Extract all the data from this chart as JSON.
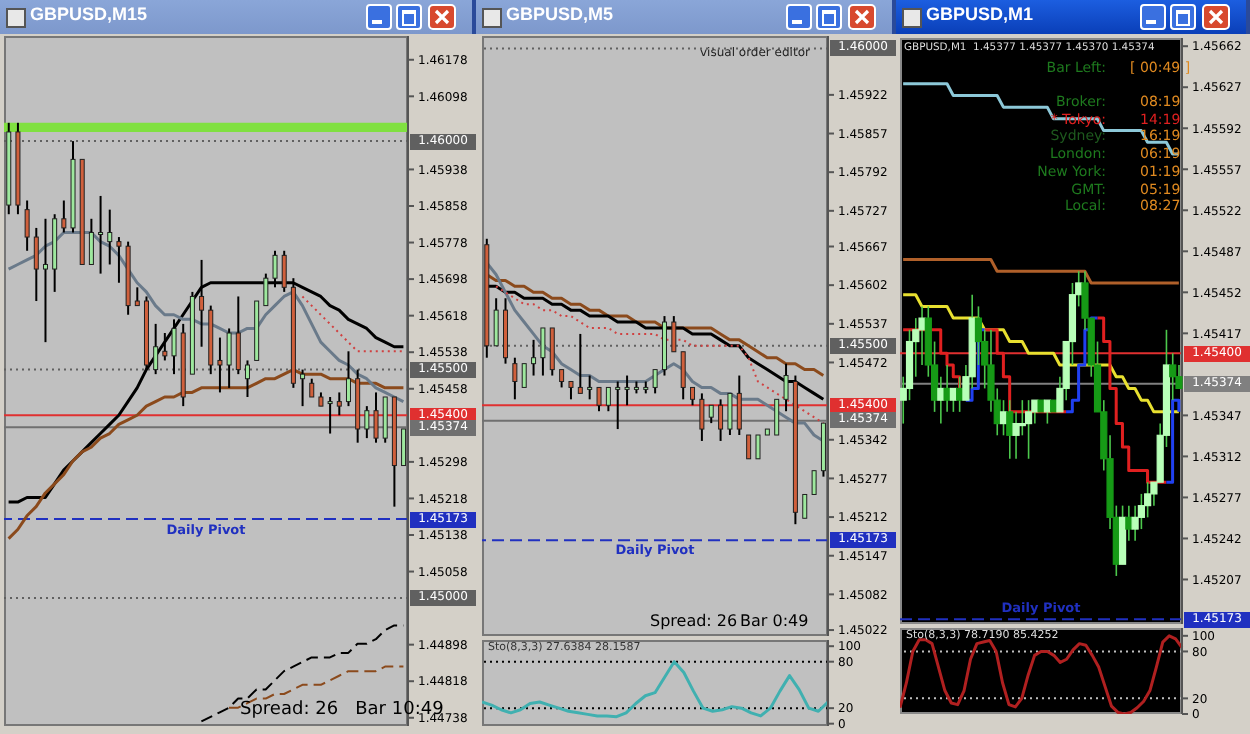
{
  "chart_data": [
    {
      "type": "candlestick",
      "title": "GBPUSD,M15",
      "tick_labels": "y",
      "categories": [
        null,
        null,
        null,
        null,
        null,
        null,
        null,
        null,
        null,
        null,
        null,
        null,
        null,
        null,
        null,
        null,
        null,
        null,
        null,
        null,
        null,
        null,
        null,
        null,
        null,
        null,
        null,
        null,
        null,
        null,
        null,
        null,
        null,
        null,
        null,
        null,
        null,
        null,
        null,
        null,
        null,
        null,
        null,
        null
      ],
      "ohlc": [
        [
          1.4586,
          1.4604,
          1.4584,
          1.4602
        ],
        [
          1.4602,
          1.4604,
          1.4584,
          1.4586
        ],
        [
          1.4585,
          1.4587,
          1.4576,
          1.4579
        ],
        [
          1.4579,
          1.4581,
          1.4565,
          1.4572
        ],
        [
          1.4572,
          1.4583,
          1.4556,
          1.4573
        ],
        [
          1.4572,
          1.4584,
          1.4567,
          1.4583
        ],
        [
          1.4583,
          1.4587,
          1.458,
          1.4581
        ],
        [
          1.4581,
          1.46,
          1.458,
          1.4596
        ],
        [
          1.4596,
          1.4596,
          1.4573,
          1.4573
        ],
        [
          1.4573,
          1.4583,
          1.4573,
          1.458
        ],
        [
          1.458,
          1.4588,
          1.4571,
          1.458
        ],
        [
          1.4578,
          1.4585,
          1.4573,
          1.458
        ],
        [
          1.4578,
          1.4579,
          1.4569,
          1.4577
        ],
        [
          1.4577,
          1.4578,
          1.4562,
          1.4564
        ],
        [
          1.4565,
          1.4568,
          1.4564,
          1.4564
        ],
        [
          1.4565,
          1.4566,
          1.455,
          1.4551
        ],
        [
          1.455,
          1.456,
          1.4549,
          1.4555
        ],
        [
          1.4554,
          1.4558,
          1.4552,
          1.4553
        ],
        [
          1.4553,
          1.4561,
          1.4549,
          1.4559
        ],
        [
          1.4558,
          1.456,
          1.4542,
          1.4544
        ],
        [
          1.4549,
          1.4567,
          1.4549,
          1.4566
        ],
        [
          1.4566,
          1.4574,
          1.4555,
          1.4563
        ],
        [
          1.4563,
          1.4564,
          1.4549,
          1.4551
        ],
        [
          1.4552,
          1.4557,
          1.4545,
          1.4551
        ],
        [
          1.4551,
          1.4559,
          1.4546,
          1.4558
        ],
        [
          1.4558,
          1.4566,
          1.4549,
          1.455
        ],
        [
          1.4548,
          1.4552,
          1.4544,
          1.4551
        ],
        [
          1.4552,
          1.4565,
          1.4552,
          1.4565
        ],
        [
          1.4564,
          1.4571,
          1.4564,
          1.457
        ],
        [
          1.457,
          1.4576,
          1.4568,
          1.4575
        ],
        [
          1.4575,
          1.4576,
          1.4567,
          1.4568
        ],
        [
          1.4568,
          1.457,
          1.4546,
          1.4547
        ],
        [
          1.4548,
          1.455,
          1.4542,
          1.4549
        ],
        [
          1.4547,
          1.4548,
          1.4544,
          1.4544
        ],
        [
          1.4544,
          1.4545,
          1.4542,
          1.4542
        ],
        [
          1.4543,
          1.4544,
          1.4536,
          1.4543
        ],
        [
          1.4543,
          1.4545,
          1.454,
          1.4542
        ],
        [
          1.4543,
          1.4554,
          1.4542,
          1.4548
        ],
        [
          1.4548,
          1.455,
          1.4534,
          1.4537
        ],
        [
          1.4537,
          1.4542,
          1.4535,
          1.4541
        ],
        [
          1.4541,
          1.4545,
          1.4534,
          1.4535
        ],
        [
          1.4535,
          1.4544,
          1.4534,
          1.4544
        ],
        [
          1.4544,
          1.4544,
          1.452,
          1.4529
        ],
        [
          1.4529,
          1.4537,
          1.4529,
          1.4537
        ]
      ],
      "series": [
        {
          "type": "line",
          "color": "#000000",
          "values": [
            1.4521,
            1.4521,
            1.4522,
            1.4522,
            1.4522,
            1.4525,
            1.4528,
            1.453,
            1.4532,
            1.4534,
            1.4536,
            1.4538,
            1.454,
            1.4543,
            1.4546,
            1.455,
            1.4553,
            1.4556,
            1.4559,
            1.4562,
            1.4565,
            1.4568,
            1.4569,
            1.4569,
            1.4569,
            1.4569,
            1.4569,
            1.4569,
            1.4569,
            1.4569,
            1.4569,
            1.4569,
            1.4568,
            1.4567,
            1.4566,
            1.4564,
            1.4563,
            1.4561,
            1.456,
            1.4559,
            1.4557,
            1.4556,
            1.4555,
            1.4555
          ]
        },
        {
          "type": "line",
          "color": "#8b4a1c",
          "values": [
            1.4513,
            1.4515,
            1.4518,
            1.452,
            1.4523,
            1.4525,
            1.4527,
            1.453,
            1.4532,
            1.4533,
            1.4535,
            1.4536,
            1.4538,
            1.4539,
            1.454,
            1.4542,
            1.4543,
            1.4544,
            1.4544,
            1.4545,
            1.4545,
            1.4546,
            1.4546,
            1.4546,
            1.4546,
            1.4546,
            1.4546,
            1.4547,
            1.4548,
            1.4548,
            1.4549,
            1.455,
            1.4549,
            1.4549,
            1.4549,
            1.4548,
            1.4548,
            1.4548,
            1.4547,
            1.4547,
            1.4547,
            1.4546,
            1.4546,
            1.4546
          ]
        },
        {
          "type": "line",
          "color": "#6a7a8a",
          "values": [
            1.4572,
            1.4573,
            1.4574,
            1.4575,
            1.4577,
            1.4578,
            1.458,
            1.458,
            1.458,
            1.458,
            1.4578,
            1.4577,
            1.4575,
            1.4572,
            1.4569,
            1.4567,
            1.4564,
            1.4562,
            1.4562,
            1.4561,
            1.4561,
            1.456,
            1.456,
            1.4559,
            1.4558,
            1.4558,
            1.4559,
            1.4559,
            1.4562,
            1.4564,
            1.4566,
            1.4567,
            1.4564,
            1.456,
            1.4556,
            1.4554,
            1.4552,
            1.4551,
            1.4549,
            1.4548,
            1.4546,
            1.4545,
            1.4544,
            1.4543
          ]
        },
        {
          "type": "line",
          "color": "#d04040",
          "line_style": "dotted",
          "values": [
            null,
            null,
            null,
            null,
            null,
            null,
            null,
            null,
            null,
            null,
            null,
            null,
            null,
            null,
            null,
            null,
            null,
            null,
            null,
            null,
            null,
            null,
            null,
            null,
            null,
            null,
            null,
            null,
            null,
            null,
            null,
            null,
            1.4566,
            1.4564,
            1.4562,
            1.456,
            1.4558,
            1.4556,
            1.4554,
            1.4554,
            1.4554,
            1.4554,
            1.4554,
            1.4554
          ]
        },
        {
          "type": "line",
          "color": "#000000",
          "line_style": "dashed",
          "values": [
            null,
            null,
            null,
            null,
            null,
            null,
            null,
            null,
            null,
            null,
            null,
            null,
            null,
            null,
            null,
            null,
            null,
            null,
            null,
            null,
            null,
            1.4473,
            1.4474,
            1.4475,
            1.4476,
            1.4478,
            1.4478,
            1.448,
            1.448,
            1.4482,
            1.4484,
            1.4485,
            1.4486,
            1.4487,
            1.4487,
            1.4487,
            1.4488,
            1.4488,
            1.449,
            1.449,
            1.4491,
            1.4493,
            1.4494,
            1.4494
          ]
        },
        {
          "type": "line",
          "color": "#8b4a1c",
          "line_style": "dashed",
          "values": [
            null,
            null,
            null,
            null,
            null,
            null,
            null,
            null,
            null,
            null,
            null,
            null,
            null,
            null,
            null,
            null,
            null,
            null,
            null,
            null,
            null,
            null,
            null,
            null,
            1.4476,
            1.4476,
            1.4477,
            1.4478,
            1.4478,
            1.4479,
            1.4479,
            1.448,
            1.4481,
            1.4481,
            1.4481,
            1.4482,
            1.4483,
            1.4484,
            1.4484,
            1.4484,
            1.4484,
            1.4485,
            1.4485,
            1.4485
          ]
        }
      ],
      "ylim": [
        1.4472,
        1.4623
      ],
      "yticks": [
        1.46178,
        1.46098,
        1.45938,
        1.45858,
        1.45778,
        1.45698,
        1.45618,
        1.45538,
        1.45458,
        1.45298,
        1.45218,
        1.45138,
        1.45058,
        1.44898,
        1.44818,
        1.44738
      ],
      "bands": [
        {
          "axis": "y",
          "from": 1.4602,
          "to": 1.4604,
          "color": "#80e040"
        }
      ],
      "ref_lines": [
        {
          "axis": "y",
          "value": 1.46,
          "label": "1.46000",
          "color": "#606060",
          "line_style": "dotted"
        },
        {
          "axis": "y",
          "value": 1.455,
          "label": "1.45500",
          "color": "#606060",
          "line_style": "dotted"
        },
        {
          "axis": "y",
          "value": 1.454,
          "label": "1.45400",
          "color": "#e03030",
          "line_style": "solid"
        },
        {
          "axis": "y",
          "value": 1.45374,
          "label": "1.45374",
          "color": "#707070",
          "line_style": "solid"
        },
        {
          "axis": "y",
          "value": 1.45173,
          "label": "1.45173",
          "color": "#2030c0",
          "line_style": "dashed"
        },
        {
          "axis": "y",
          "value": 1.45,
          "label": "1.45000",
          "color": "#606060",
          "line_style": "dotted"
        }
      ],
      "annotations": [
        "Spread: 26   Bar 10:49",
        {
          "text": "Daily Pivot",
          "y": 1.45173
        }
      ]
    },
    {
      "type": "candlestick",
      "title": "GBPUSD,M5",
      "tick_labels": "y",
      "categories": [
        null,
        null,
        null,
        null,
        null,
        null,
        null,
        null,
        null,
        null,
        null,
        null,
        null,
        null,
        null,
        null,
        null,
        null,
        null,
        null,
        null,
        null,
        null,
        null,
        null,
        null,
        null,
        null,
        null,
        null,
        null,
        null,
        null,
        null,
        null,
        null,
        null
      ],
      "ohlc": [
        [
          1.4567,
          1.4568,
          1.4548,
          1.455
        ],
        [
          1.455,
          1.4558,
          1.455,
          1.4556
        ],
        [
          1.4556,
          1.4558,
          1.4547,
          1.4548
        ],
        [
          1.4547,
          1.4548,
          1.4541,
          1.4544
        ],
        [
          1.4543,
          1.4547,
          1.4543,
          1.4547
        ],
        [
          1.4547,
          1.4551,
          1.4545,
          1.4548
        ],
        [
          1.4548,
          1.4553,
          1.4545,
          1.4553
        ],
        [
          1.4553,
          1.4553,
          1.4545,
          1.4546
        ],
        [
          1.4546,
          1.4546,
          1.4543,
          1.4544
        ],
        [
          1.4544,
          1.4544,
          1.4541,
          1.4543
        ],
        [
          1.4543,
          1.4552,
          1.4542,
          1.4542
        ],
        [
          1.4543,
          1.4545,
          1.4541,
          1.4543
        ],
        [
          1.4543,
          1.4543,
          1.4539,
          1.454
        ],
        [
          1.454,
          1.4543,
          1.4539,
          1.4543
        ],
        [
          1.4543,
          1.4544,
          1.4536,
          1.4543
        ],
        [
          1.4543,
          1.4545,
          1.454,
          1.4543
        ],
        [
          1.4543,
          1.4544,
          1.4542,
          1.4543
        ],
        [
          1.4543,
          1.4544,
          1.4542,
          1.4543
        ],
        [
          1.4543,
          1.4546,
          1.4542,
          1.4546
        ],
        [
          1.4546,
          1.4555,
          1.4545,
          1.4554
        ],
        [
          1.4554,
          1.4555,
          1.4549,
          1.4549
        ],
        [
          1.4549,
          1.4549,
          1.4541,
          1.4543
        ],
        [
          1.4543,
          1.4543,
          1.454,
          1.4541
        ],
        [
          1.4541,
          1.4542,
          1.4534,
          1.4536
        ],
        [
          1.4538,
          1.454,
          1.4537,
          1.454
        ],
        [
          1.454,
          1.4541,
          1.4534,
          1.4536
        ],
        [
          1.4536,
          1.4542,
          1.4535,
          1.4542
        ],
        [
          1.4542,
          1.4545,
          1.4535,
          1.4536
        ],
        [
          1.4535,
          1.4535,
          1.4531,
          1.4531
        ],
        [
          1.4531,
          1.4535,
          1.4531,
          1.4535
        ],
        [
          1.4535,
          1.4536,
          1.4535,
          1.4536
        ],
        [
          1.4535,
          1.4541,
          1.4535,
          1.4541
        ],
        [
          1.4541,
          1.4547,
          1.4539,
          1.4545
        ],
        [
          1.4544,
          1.4545,
          1.452,
          1.4522
        ],
        [
          1.4521,
          1.4525,
          1.4521,
          1.4525
        ],
        [
          1.4525,
          1.4529,
          1.4525,
          1.4529
        ],
        [
          1.4529,
          1.4537,
          1.4528,
          1.4537
        ]
      ],
      "series": [
        {
          "type": "line",
          "color": "#8b4a1c",
          "values": [
            1.4562,
            1.4561,
            1.4561,
            1.456,
            1.456,
            1.4559,
            1.4559,
            1.4558,
            1.4558,
            1.4557,
            1.4557,
            1.4556,
            1.4556,
            1.4555,
            1.4555,
            1.4555,
            1.4554,
            1.4554,
            1.4554,
            1.4553,
            1.4553,
            1.4553,
            1.4553,
            1.4553,
            1.4553,
            1.4552,
            1.4551,
            1.4551,
            1.455,
            1.4549,
            1.4548,
            1.4548,
            1.4547,
            1.4547,
            1.4546,
            1.4546,
            1.4545
          ]
        },
        {
          "type": "line",
          "color": "#000000",
          "values": [
            1.456,
            1.456,
            1.4559,
            1.4559,
            1.4558,
            1.4558,
            1.4558,
            1.4557,
            1.4557,
            1.4556,
            1.4556,
            1.4555,
            1.4555,
            1.4555,
            1.4554,
            1.4554,
            1.4554,
            1.4553,
            1.4553,
            1.4553,
            1.4553,
            1.4553,
            1.4552,
            1.4552,
            1.4552,
            1.4551,
            1.455,
            1.455,
            1.4548,
            1.4547,
            1.4546,
            1.4545,
            1.4544,
            1.4544,
            1.4543,
            1.4542,
            1.4541
          ]
        },
        {
          "type": "line",
          "color": "#6a7a8a",
          "values": [
            1.4564,
            1.4562,
            1.4559,
            1.4556,
            1.4554,
            1.4552,
            1.455,
            1.4549,
            1.4547,
            1.4546,
            1.4545,
            1.4545,
            1.4544,
            1.4544,
            1.4544,
            1.4544,
            1.4544,
            1.4544,
            1.4545,
            1.4546,
            1.4547,
            1.4546,
            1.4544,
            1.4543,
            1.4543,
            1.4542,
            1.4542,
            1.4541,
            1.4541,
            1.4541,
            1.454,
            1.4539,
            1.4538,
            1.4537,
            1.4537,
            1.4535,
            1.4534
          ]
        },
        {
          "type": "line",
          "color": "#d04040",
          "line_style": "dotted",
          "values": [
            null,
            1.456,
            1.4559,
            1.4558,
            1.4557,
            1.4557,
            1.4556,
            1.4556,
            1.4555,
            1.4555,
            1.4554,
            1.4553,
            1.4553,
            1.4553,
            1.4552,
            1.4552,
            1.4552,
            1.4552,
            1.4552,
            1.4551,
            1.4551,
            1.4551,
            1.455,
            1.455,
            1.455,
            1.455,
            1.455,
            1.455,
            1.4548,
            1.4544,
            1.4543,
            1.4542,
            1.4541,
            1.454,
            1.4539,
            1.4538,
            1.4537
          ]
        }
      ],
      "ylim": [
        1.45012,
        1.46021
      ],
      "yticks": [
        1.45922,
        1.45857,
        1.45792,
        1.45727,
        1.45667,
        1.45602,
        1.45537,
        1.45472,
        1.45342,
        1.45277,
        1.45212,
        1.45147,
        1.45082,
        1.45022
      ],
      "ref_lines": [
        {
          "axis": "y",
          "value": 1.46,
          "label": "1.46000",
          "color": "#606060",
          "line_style": "dotted"
        },
        {
          "axis": "y",
          "value": 1.455,
          "label": "1.45500",
          "color": "#606060",
          "line_style": "dotted"
        },
        {
          "axis": "y",
          "value": 1.454,
          "label": "1.45400",
          "color": "#e03030",
          "line_style": "solid"
        },
        {
          "axis": "y",
          "value": 1.45374,
          "label": "1.45374",
          "color": "#707070",
          "line_style": "solid"
        },
        {
          "axis": "y",
          "value": 1.45173,
          "label": "1.45173",
          "color": "#2030c0",
          "line_style": "dashed"
        }
      ],
      "annotations": [
        "visual order editor",
        "Spread: 26",
        "Bar 0:49",
        {
          "text": "Daily Pivot",
          "y": 1.45173
        }
      ]
    },
    {
      "type": "line",
      "title": "Sto(8,3,3) 27.6384 28.1587",
      "tick_labels": "y",
      "categories": [
        null,
        null,
        null,
        null,
        null,
        null,
        null,
        null,
        null,
        null,
        null,
        null,
        null,
        null,
        null,
        null,
        null,
        null,
        null,
        null,
        null,
        null,
        null,
        null,
        null,
        null,
        null,
        null,
        null,
        null,
        null,
        null,
        null,
        null,
        null,
        null,
        null
      ],
      "series": [
        {
          "color": "#40b0b0",
          "values": [
            28,
            24,
            18,
            14,
            18,
            26,
            28,
            24,
            20,
            16,
            14,
            12,
            10,
            10,
            9,
            14,
            26,
            36,
            40,
            60,
            80,
            66,
            42,
            20,
            16,
            18,
            22,
            20,
            14,
            10,
            20,
            42,
            62,
            44,
            20,
            16,
            28
          ]
        }
      ],
      "ylim": [
        -3,
        108
      ],
      "yticks": [
        0,
        20,
        80,
        100
      ],
      "ref_lines": [
        {
          "axis": "y",
          "value": 80,
          "color": "#000000",
          "line_style": "dotted"
        },
        {
          "axis": "y",
          "value": 20,
          "color": "#000000",
          "line_style": "dotted"
        }
      ]
    },
    {
      "type": "candlestick",
      "title": "GBPUSD,M1",
      "tick_labels": "y",
      "categories": [
        null,
        null,
        null,
        null,
        null,
        null,
        null,
        null,
        null,
        null,
        null,
        null,
        null,
        null,
        null,
        null,
        null,
        null,
        null,
        null,
        null,
        null,
        null,
        null,
        null,
        null,
        null,
        null,
        null,
        null,
        null,
        null,
        null,
        null,
        null,
        null,
        null,
        null,
        null,
        null,
        null,
        null,
        null,
        null,
        null
      ],
      "ohlc": [
        [
          1.4536,
          1.4538,
          1.4534,
          1.4537
        ],
        [
          1.4537,
          1.4542,
          1.4536,
          1.4541
        ],
        [
          1.4541,
          1.4543,
          1.4538,
          1.4542
        ],
        [
          1.4542,
          1.4544,
          1.4539,
          1.4543
        ],
        [
          1.4543,
          1.4544,
          1.4538,
          1.4539
        ],
        [
          1.4539,
          1.4541,
          1.4535,
          1.4536
        ],
        [
          1.4536,
          1.4538,
          1.4534,
          1.4537
        ],
        [
          1.4537,
          1.4539,
          1.4535,
          1.4536
        ],
        [
          1.4536,
          1.4537,
          1.4535,
          1.4537
        ],
        [
          1.4537,
          1.4538,
          1.4535,
          1.4536
        ],
        [
          1.4536,
          1.4539,
          1.4536,
          1.4538
        ],
        [
          1.4538,
          1.4545,
          1.4537,
          1.4543
        ],
        [
          1.4543,
          1.4544,
          1.4539,
          1.4541
        ],
        [
          1.4541,
          1.4542,
          1.4537,
          1.4539
        ],
        [
          1.4539,
          1.4542,
          1.4535,
          1.4536
        ],
        [
          1.4536,
          1.4537,
          1.4533,
          1.4534
        ],
        [
          1.4534,
          1.4536,
          1.4533,
          1.4535
        ],
        [
          1.4535,
          1.4536,
          1.4531,
          1.4533
        ],
        [
          1.4533,
          1.4535,
          1.4531,
          1.4534
        ],
        [
          1.4534,
          1.4536,
          1.4533,
          1.4534
        ],
        [
          1.4534,
          1.4536,
          1.4531,
          1.4535
        ],
        [
          1.4535,
          1.4536,
          1.4534,
          1.4536
        ],
        [
          1.4536,
          1.4536,
          1.4535,
          1.4535
        ],
        [
          1.4535,
          1.4536,
          1.4534,
          1.4536
        ],
        [
          1.4536,
          1.4536,
          1.4535,
          1.4535
        ],
        [
          1.4535,
          1.4538,
          1.4535,
          1.4537
        ],
        [
          1.4537,
          1.4541,
          1.4536,
          1.4541
        ],
        [
          1.4541,
          1.4546,
          1.4539,
          1.4545
        ],
        [
          1.4545,
          1.4547,
          1.4544,
          1.4546
        ],
        [
          1.4546,
          1.4547,
          1.4542,
          1.4543
        ],
        [
          1.4543,
          1.4543,
          1.4538,
          1.4539
        ],
        [
          1.4539,
          1.4541,
          1.4535,
          1.4535
        ],
        [
          1.4535,
          1.4536,
          1.453,
          1.4531
        ],
        [
          1.4531,
          1.4533,
          1.4525,
          1.4526
        ],
        [
          1.4526,
          1.4527,
          1.4521,
          1.4522
        ],
        [
          1.4522,
          1.4527,
          1.4522,
          1.4526
        ],
        [
          1.4526,
          1.4527,
          1.4524,
          1.4525
        ],
        [
          1.4525,
          1.4527,
          1.4524,
          1.4526
        ],
        [
          1.4526,
          1.4528,
          1.4525,
          1.4527
        ],
        [
          1.4527,
          1.4529,
          1.4526,
          1.4528
        ],
        [
          1.4528,
          1.4529,
          1.4527,
          1.4529
        ],
        [
          1.4529,
          1.4534,
          1.4529,
          1.4533
        ],
        [
          1.4533,
          1.4542,
          1.4532,
          1.4539
        ],
        [
          1.4539,
          1.454,
          1.4536,
          1.4538
        ],
        [
          1.4538,
          1.4539,
          1.4537,
          1.4537
        ]
      ],
      "series": [
        {
          "type": "line",
          "color": "#8cc8d8",
          "values": [
            1.4563,
            1.4563,
            1.4563,
            1.4563,
            1.4563,
            1.4563,
            1.4563,
            1.4563,
            1.4562,
            1.4562,
            1.4562,
            1.4562,
            1.4562,
            1.4562,
            1.4562,
            1.4562,
            1.4561,
            1.4561,
            1.4561,
            1.4561,
            1.4561,
            1.4561,
            1.4561,
            1.4561,
            1.456,
            1.456,
            1.456,
            1.456,
            1.456,
            1.456,
            1.456,
            1.456,
            1.4559,
            1.4559,
            1.4559,
            1.4559,
            1.4559,
            1.4559,
            1.4559,
            1.4558,
            1.4558,
            1.4558,
            1.4558,
            1.4557,
            1.4557
          ]
        },
        {
          "type": "line",
          "color": "#b0602a",
          "values": [
            1.4548,
            1.4548,
            1.4548,
            1.4548,
            1.4548,
            1.4548,
            1.4548,
            1.4548,
            1.4548,
            1.4548,
            1.4548,
            1.4548,
            1.4548,
            1.4548,
            1.4548,
            1.4547,
            1.4547,
            1.4547,
            1.4547,
            1.4547,
            1.4547,
            1.4547,
            1.4547,
            1.4547,
            1.4547,
            1.4547,
            1.4547,
            1.4547,
            1.4547,
            1.4547,
            1.4546,
            1.4546,
            1.4546,
            1.4546,
            1.4546,
            1.4546,
            1.4546,
            1.4546,
            1.4546,
            1.4546,
            1.4546,
            1.4546,
            1.4546,
            1.4546,
            1.4546
          ]
        },
        {
          "type": "line",
          "color": "#e8e030",
          "values": [
            1.4545,
            1.4545,
            1.4545,
            1.4544,
            1.4544,
            1.4544,
            1.4544,
            1.4544,
            1.4543,
            1.4543,
            1.4543,
            1.4543,
            1.4543,
            1.4542,
            1.4542,
            1.4542,
            1.4542,
            1.4541,
            1.4541,
            1.4541,
            1.454,
            1.454,
            1.454,
            1.454,
            1.454,
            1.4539,
            1.4539,
            1.4539,
            1.4539,
            1.4539,
            1.4539,
            1.4539,
            1.4539,
            1.4539,
            1.4538,
            1.4538,
            1.4537,
            1.4537,
            1.4536,
            1.4536,
            1.4535,
            1.4535,
            1.4535,
            1.4535,
            1.4535
          ]
        },
        {
          "type": "step",
          "color": "#e02020",
          "values": [
            1.4542,
            1.4542,
            1.4542,
            1.4542,
            1.4542,
            1.4542,
            1.454,
            1.4539,
            1.4538,
            1.4537,
            null,
            null,
            null,
            1.4542,
            1.4542,
            1.454,
            1.4538,
            1.4535,
            1.4535,
            1.4535,
            1.4535,
            1.4535,
            1.4535,
            1.4535,
            1.4535,
            1.4535,
            1.4535,
            null,
            null,
            null,
            null,
            1.4543,
            1.4541,
            1.4537,
            1.4534,
            1.4532,
            1.453,
            1.453,
            1.453,
            1.4529,
            1.4529,
            1.4529,
            1.4529,
            null,
            null
          ]
        },
        {
          "type": "step",
          "color": "#2040f0",
          "values": [
            null,
            null,
            null,
            null,
            null,
            null,
            null,
            null,
            null,
            null,
            1.4536,
            1.4537,
            1.4542,
            1.4542,
            null,
            null,
            null,
            null,
            null,
            null,
            null,
            null,
            null,
            null,
            null,
            null,
            1.4535,
            1.4536,
            1.4539,
            1.4542,
            1.4543,
            1.4543,
            null,
            null,
            null,
            null,
            null,
            null,
            null,
            null,
            null,
            null,
            1.4529,
            1.4536,
            1.4535
          ]
        }
      ],
      "ylim": [
        1.45169,
        1.45669
      ],
      "yticks": [
        1.45662,
        1.45627,
        1.45592,
        1.45557,
        1.45522,
        1.45487,
        1.45452,
        1.45417,
        1.45347,
        1.45312,
        1.45277,
        1.45242,
        1.45207
      ],
      "ref_lines": [
        {
          "axis": "y",
          "value": 1.454,
          "label": "1.45400",
          "color": "#e03030",
          "line_style": "solid"
        },
        {
          "axis": "y",
          "value": 1.45374,
          "label": "1.45374",
          "color": "#808080",
          "line_style": "solid"
        },
        {
          "axis": "y",
          "value": 1.45173,
          "label": "1.45173",
          "color": "#2030c0",
          "line_style": "dashed"
        }
      ],
      "annotations": [
        "GBPUSD,M1  1.45377 1.45377 1.45370 1.45374",
        "Bar Left:",
        "[ 00:49 ]",
        "Broker:",
        "08:19",
        "* Tokyo:",
        "14:19",
        "Sydney:",
        "16:19",
        "London:",
        "06:19",
        "New York:",
        "01:19",
        "GMT:",
        "05:19",
        "Local:",
        "08:27",
        {
          "text": "Daily Pivot",
          "y": 1.45173
        }
      ]
    },
    {
      "type": "line",
      "title": "Sto(8,3,3) 78.7190 85.4252",
      "tick_labels": "y",
      "categories": [
        null,
        null,
        null,
        null,
        null,
        null,
        null,
        null,
        null,
        null,
        null,
        null,
        null,
        null,
        null,
        null,
        null,
        null,
        null,
        null,
        null,
        null,
        null,
        null,
        null,
        null,
        null,
        null,
        null,
        null,
        null,
        null,
        null,
        null,
        null,
        null,
        null,
        null,
        null,
        null,
        null,
        null,
        null,
        null,
        null
      ],
      "series": [
        {
          "color": "#b02020",
          "values": [
            8,
            40,
            80,
            95,
            95,
            90,
            60,
            30,
            14,
            12,
            30,
            70,
            90,
            92,
            94,
            80,
            40,
            12,
            9,
            20,
            50,
            75,
            80,
            80,
            75,
            66,
            70,
            82,
            90,
            88,
            75,
            60,
            35,
            10,
            2,
            0,
            2,
            8,
            16,
            30,
            60,
            92,
            100,
            96,
            85
          ]
        }
      ],
      "ylim": [
        0,
        110
      ],
      "yticks": [
        0,
        20,
        80,
        100
      ],
      "ref_lines": [
        {
          "axis": "y",
          "value": 80,
          "color": "#c0c0c0",
          "line_style": "dotted"
        },
        {
          "axis": "y",
          "value": 20,
          "color": "#c0c0c0",
          "line_style": "dotted"
        }
      ]
    }
  ]
}
